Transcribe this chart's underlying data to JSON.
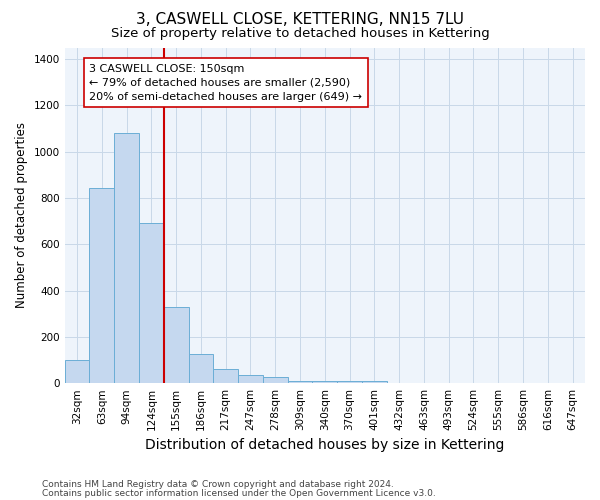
{
  "title": "3, CASWELL CLOSE, KETTERING, NN15 7LU",
  "subtitle": "Size of property relative to detached houses in Kettering",
  "xlabel": "Distribution of detached houses by size in Kettering",
  "ylabel": "Number of detached properties",
  "footnote1": "Contains HM Land Registry data © Crown copyright and database right 2024.",
  "footnote2": "Contains public sector information licensed under the Open Government Licence v3.0.",
  "bin_labels": [
    "32sqm",
    "63sqm",
    "94sqm",
    "124sqm",
    "155sqm",
    "186sqm",
    "217sqm",
    "247sqm",
    "278sqm",
    "309sqm",
    "340sqm",
    "370sqm",
    "401sqm",
    "432sqm",
    "463sqm",
    "493sqm",
    "524sqm",
    "555sqm",
    "586sqm",
    "616sqm",
    "647sqm"
  ],
  "bar_heights": [
    100,
    845,
    1080,
    690,
    330,
    125,
    60,
    35,
    25,
    10,
    10,
    10,
    10,
    0,
    0,
    0,
    0,
    0,
    0,
    0,
    0
  ],
  "bar_color": "#c5d8ef",
  "bar_edgecolor": "#6baed6",
  "red_line_color": "#cc0000",
  "red_line_bin": 4,
  "annotation_text": "3 CASWELL CLOSE: 150sqm\n← 79% of detached houses are smaller (2,590)\n20% of semi-detached houses are larger (649) →",
  "annotation_box_facecolor": "#ffffff",
  "annotation_box_edgecolor": "#cc0000",
  "ylim": [
    0,
    1450
  ],
  "yticks": [
    0,
    200,
    400,
    600,
    800,
    1000,
    1200,
    1400
  ],
  "background_color": "#ffffff",
  "plot_bg_color": "#eef4fb",
  "grid_color": "#c8d8e8",
  "title_fontsize": 11,
  "subtitle_fontsize": 9.5,
  "xlabel_fontsize": 10,
  "ylabel_fontsize": 8.5,
  "tick_fontsize": 7.5,
  "annotation_fontsize": 8,
  "footnote_fontsize": 6.5
}
